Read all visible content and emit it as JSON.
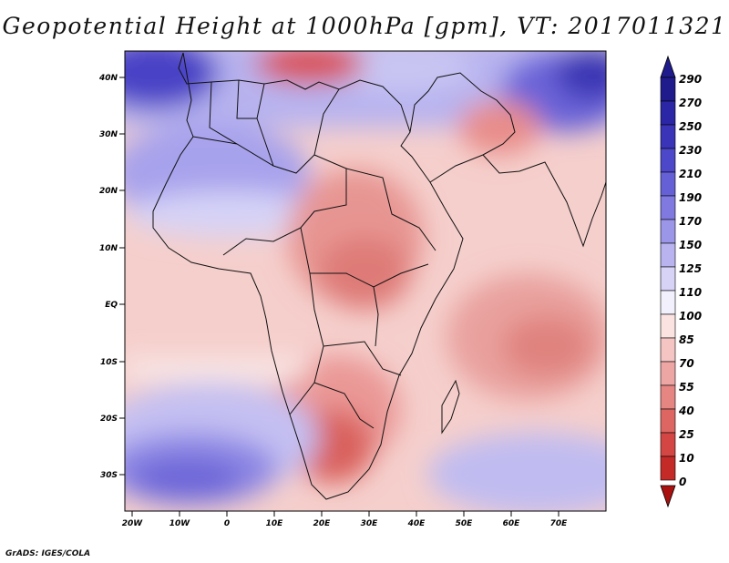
{
  "title": "Geopotential Height at 1000hPa [gpm], VT: 2017011321",
  "credit": "GrADS: IGES/COLA",
  "map": {
    "lat_labels": [
      "40N",
      "30N",
      "20N",
      "10N",
      "EQ",
      "10S",
      "20S",
      "30S"
    ],
    "lon_labels": [
      "20W",
      "10W",
      "0",
      "10E",
      "20E",
      "30E",
      "40E",
      "50E",
      "60E",
      "70E"
    ]
  },
  "colorbar": {
    "labels": [
      "290",
      "270",
      "250",
      "230",
      "210",
      "190",
      "170",
      "150",
      "125",
      "110",
      "100",
      "85",
      "70",
      "55",
      "40",
      "25",
      "10",
      "0"
    ],
    "colors": [
      "#1f1b8c",
      "#2a26a6",
      "#3a34b8",
      "#4d47c9",
      "#6660d6",
      "#7f79e0",
      "#9c96e8",
      "#b9b4f0",
      "#d6d3f7",
      "#f2f0fc",
      "#fbe3e2",
      "#f5c5c3",
      "#eea6a4",
      "#e68683",
      "#dd6663",
      "#d34643",
      "#c42a27",
      "#a8110f"
    ]
  }
}
